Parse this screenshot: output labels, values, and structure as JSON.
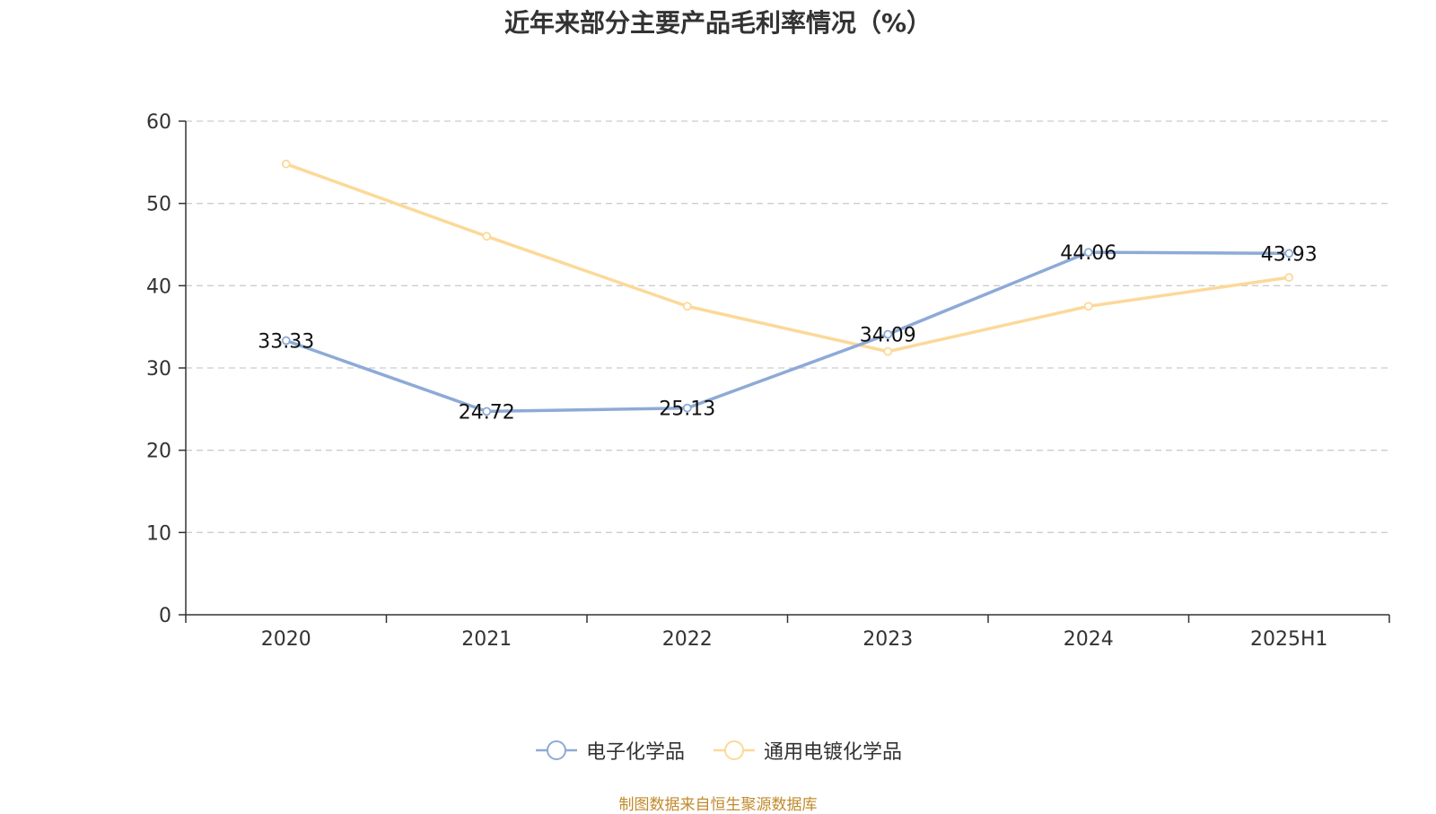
{
  "colors": {
    "series1": "#8eaad6",
    "series2": "#fcd999",
    "grid": "#cccccc",
    "axis": "#333333",
    "text": "#333333",
    "source": "#c08a2d"
  },
  "chart_data": {
    "type": "line",
    "title": "近年来部分主要产品毛利率情况（%）",
    "xlabel": "",
    "ylabel": "",
    "categories": [
      "2020",
      "2021",
      "2022",
      "2023",
      "2024",
      "2025H1"
    ],
    "ylim": [
      0,
      60
    ],
    "yticks": [
      "0",
      "10",
      "20",
      "30",
      "40",
      "50",
      "60"
    ],
    "grid": "horizontal-dashed",
    "legend_position": "bottom-center",
    "series": [
      {
        "name": "电子化学品",
        "values": [
          33.33,
          24.72,
          25.13,
          34.09,
          44.06,
          43.93
        ],
        "labels": [
          "33.33",
          "24.72",
          "25.13",
          "34.09",
          "44.06",
          "43.93"
        ]
      },
      {
        "name": "通用电镀化学品",
        "values": [
          54.8,
          46.0,
          37.5,
          32.0,
          37.5,
          41.0
        ],
        "labels": []
      }
    ]
  },
  "legend": {
    "item1": "电子化学品",
    "item2": "通用电镀化学品"
  },
  "source_note": "制图数据来自恒生聚源数据库"
}
